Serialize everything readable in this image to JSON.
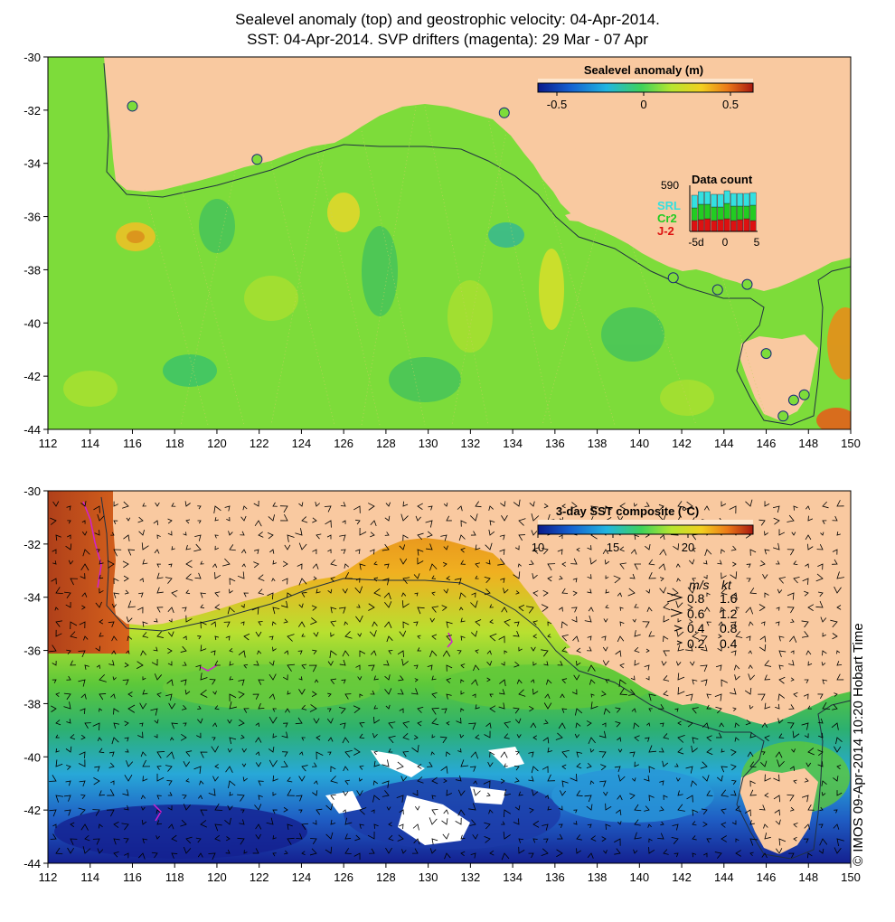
{
  "title_line1": "Sealevel anomaly (top) and geostrophic velocity: 04-Apr-2014.",
  "title_line2": "SST: 04-Apr-2014. SVP drifters (magenta): 29 Mar - 07 Apr",
  "credit": "© IMOS 09-Apr-2014 10:20 Hobart Time",
  "axes": {
    "x_ticks": [
      "112",
      "114",
      "116",
      "118",
      "120",
      "122",
      "124",
      "126",
      "128",
      "130",
      "132",
      "134",
      "136",
      "138",
      "140",
      "142",
      "144",
      "146",
      "148",
      "150"
    ],
    "y_ticks": [
      "-30",
      "-32",
      "-34",
      "-36",
      "-38",
      "-40",
      "-42",
      "-44"
    ],
    "lon_range": [
      112,
      150
    ],
    "lat_range": [
      -44,
      -30
    ]
  },
  "colors": {
    "land": "#f9c9a0",
    "sla_ocean": "#7ddc3a",
    "sst_warm": "#e88a22",
    "sst_mid": "#76d23a",
    "sst_cool": "#2c9ad6",
    "sst_cold": "#1a2a9a",
    "tide_gauge": "#7ddc3a"
  },
  "top_panel": {
    "colorbar_title": "Sealevel anomaly (m)",
    "colorbar_ticks": [
      "-0.5",
      "0",
      "0.5"
    ],
    "data_count": {
      "title": "Data count",
      "max_value": "590",
      "series_labels": [
        "SRL",
        "Cr2",
        "J-2"
      ],
      "series_colors": [
        "#33e0e0",
        "#22cc22",
        "#dd1111"
      ],
      "x_ticks": [
        "-5d",
        "0",
        "5"
      ]
    },
    "tide_gauges": [
      {
        "lon": 116.0,
        "lat": -31.85
      },
      {
        "lon": 121.9,
        "lat": -33.85
      },
      {
        "lon": 133.6,
        "lat": -32.1
      },
      {
        "lon": 141.6,
        "lat": -38.3
      },
      {
        "lon": 143.7,
        "lat": -38.75
      },
      {
        "lon": 145.1,
        "lat": -38.55
      },
      {
        "lon": 146.0,
        "lat": -41.15
      },
      {
        "lon": 147.8,
        "lat": -42.7
      },
      {
        "lon": 147.3,
        "lat": -42.9
      },
      {
        "lon": 146.8,
        "lat": -43.5
      }
    ]
  },
  "bottom_panel": {
    "colorbar_title": "3-day SST composite (°C)",
    "colorbar_ticks": [
      "10",
      "15",
      "20"
    ],
    "legend": {
      "header_ms": "m/s",
      "header_kt": "kt",
      "rows": [
        {
          "ms": "0.8",
          "kt": "1.6"
        },
        {
          "ms": "0.6",
          "kt": "1.2"
        },
        {
          "ms": "0.4",
          "kt": "0.8"
        },
        {
          "ms": "0.2",
          "kt": "0.4"
        }
      ]
    }
  }
}
